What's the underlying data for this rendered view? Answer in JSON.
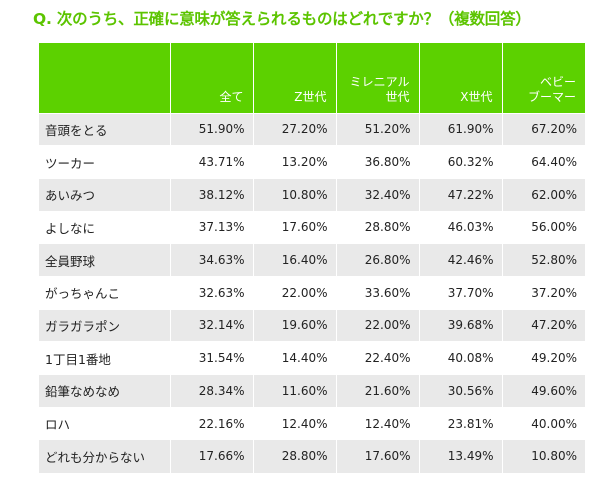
{
  "question": "Q. 次のうち、正確に意味が答えられるものはどれですか？（複数回答）",
  "colors": {
    "header_bg": "#5cd100",
    "question_text": "#5cc400",
    "stripe": "#e9e9e9"
  },
  "chart_data": {
    "type": "table",
    "columns": [
      "",
      "全て",
      "Z世代",
      "ミレニアル\n世代",
      "X世代",
      "ベビー\nブーマー"
    ],
    "rows": [
      {
        "label": "音頭をとる",
        "values": [
          "51.90%",
          "27.20%",
          "51.20%",
          "61.90%",
          "67.20%"
        ]
      },
      {
        "label": "ツーカー",
        "values": [
          "43.71%",
          "13.20%",
          "36.80%",
          "60.32%",
          "64.40%"
        ]
      },
      {
        "label": "あいみつ",
        "values": [
          "38.12%",
          "10.80%",
          "32.40%",
          "47.22%",
          "62.00%"
        ]
      },
      {
        "label": "よしなに",
        "values": [
          "37.13%",
          "17.60%",
          "28.80%",
          "46.03%",
          "56.00%"
        ]
      },
      {
        "label": "全員野球",
        "values": [
          "34.63%",
          "16.40%",
          "26.80%",
          "42.46%",
          "52.80%"
        ]
      },
      {
        "label": "がっちゃんこ",
        "values": [
          "32.63%",
          "22.00%",
          "33.60%",
          "37.70%",
          "37.20%"
        ]
      },
      {
        "label": "ガラガラポン",
        "values": [
          "32.14%",
          "19.60%",
          "22.00%",
          "39.68%",
          "47.20%"
        ]
      },
      {
        "label": "1丁目1番地",
        "values": [
          "31.54%",
          "14.40%",
          "22.40%",
          "40.08%",
          "49.20%"
        ]
      },
      {
        "label": "鉛筆なめなめ",
        "values": [
          "28.34%",
          "11.60%",
          "21.60%",
          "30.56%",
          "49.60%"
        ]
      },
      {
        "label": "ロハ",
        "values": [
          "22.16%",
          "12.40%",
          "12.40%",
          "23.81%",
          "40.00%"
        ]
      },
      {
        "label": "どれも分からない",
        "values": [
          "17.66%",
          "28.80%",
          "17.60%",
          "13.49%",
          "10.80%"
        ]
      }
    ]
  }
}
